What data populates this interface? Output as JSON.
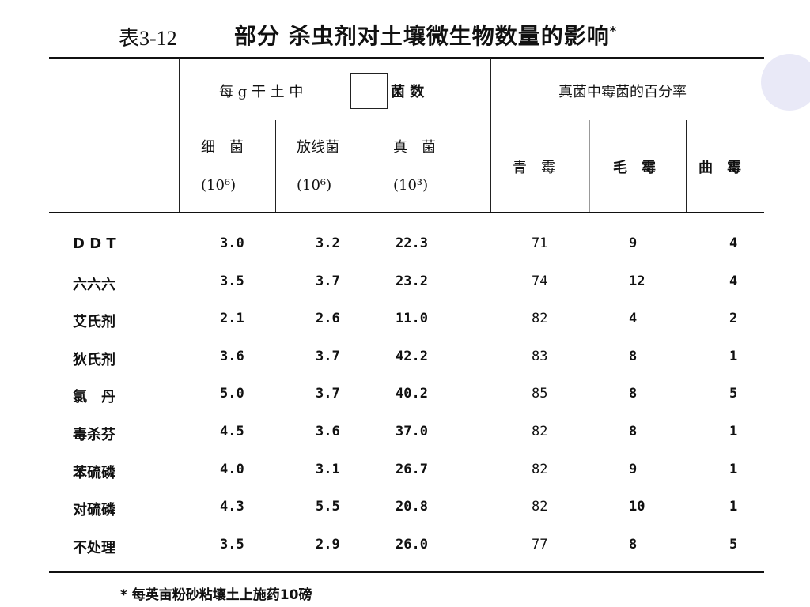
{
  "title": {
    "number": "表3-12",
    "text": "部分 杀虫剂对土壤微生物数量的影响",
    "mark": "*"
  },
  "header": {
    "group1_parts": [
      "每 g 干 土 中",
      "菌 数"
    ],
    "group2": "真菌中霉菌的百分率",
    "columns": [
      {
        "name": "细　菌",
        "unit": "(10⁶)"
      },
      {
        "name": "放线菌",
        "unit": "(10⁶)"
      },
      {
        "name": "真　菌",
        "unit": "(10³)"
      },
      {
        "name": "青　霉",
        "unit": ""
      },
      {
        "name": "毛　霉",
        "unit": ""
      },
      {
        "name": "曲　霉",
        "unit": ""
      }
    ]
  },
  "rows": [
    {
      "label": "D D T",
      "values": [
        "3.0",
        "3.2",
        "22.3",
        "71",
        "9",
        "4"
      ]
    },
    {
      "label": "六六六",
      "values": [
        "3.5",
        "3.7",
        "23.2",
        "74",
        "12",
        "4"
      ]
    },
    {
      "label": "艾氏剂",
      "values": [
        "2.1",
        "2.6",
        "11.0",
        "82",
        "4",
        "2"
      ]
    },
    {
      "label": "狄氏剂",
      "values": [
        "3.6",
        "3.7",
        "42.2",
        "83",
        "8",
        "1"
      ]
    },
    {
      "label": "氯　丹",
      "values": [
        "5.0",
        "3.7",
        "40.2",
        "85",
        "8",
        "5"
      ]
    },
    {
      "label": "毒杀芬",
      "values": [
        "4.5",
        "3.6",
        "37.0",
        "82",
        "8",
        "1"
      ]
    },
    {
      "label": "苯硫磷",
      "values": [
        "4.0",
        "3.1",
        "26.7",
        "82",
        "9",
        "1"
      ]
    },
    {
      "label": "对硫磷",
      "values": [
        "4.3",
        "5.5",
        "20.8",
        "82",
        "10",
        "1"
      ]
    },
    {
      "label": "不处理",
      "values": [
        "3.5",
        "2.9",
        "26.0",
        "77",
        "8",
        "5"
      ]
    }
  ],
  "footnote": "*  每英亩粉砂粘壤土上施药10磅"
}
